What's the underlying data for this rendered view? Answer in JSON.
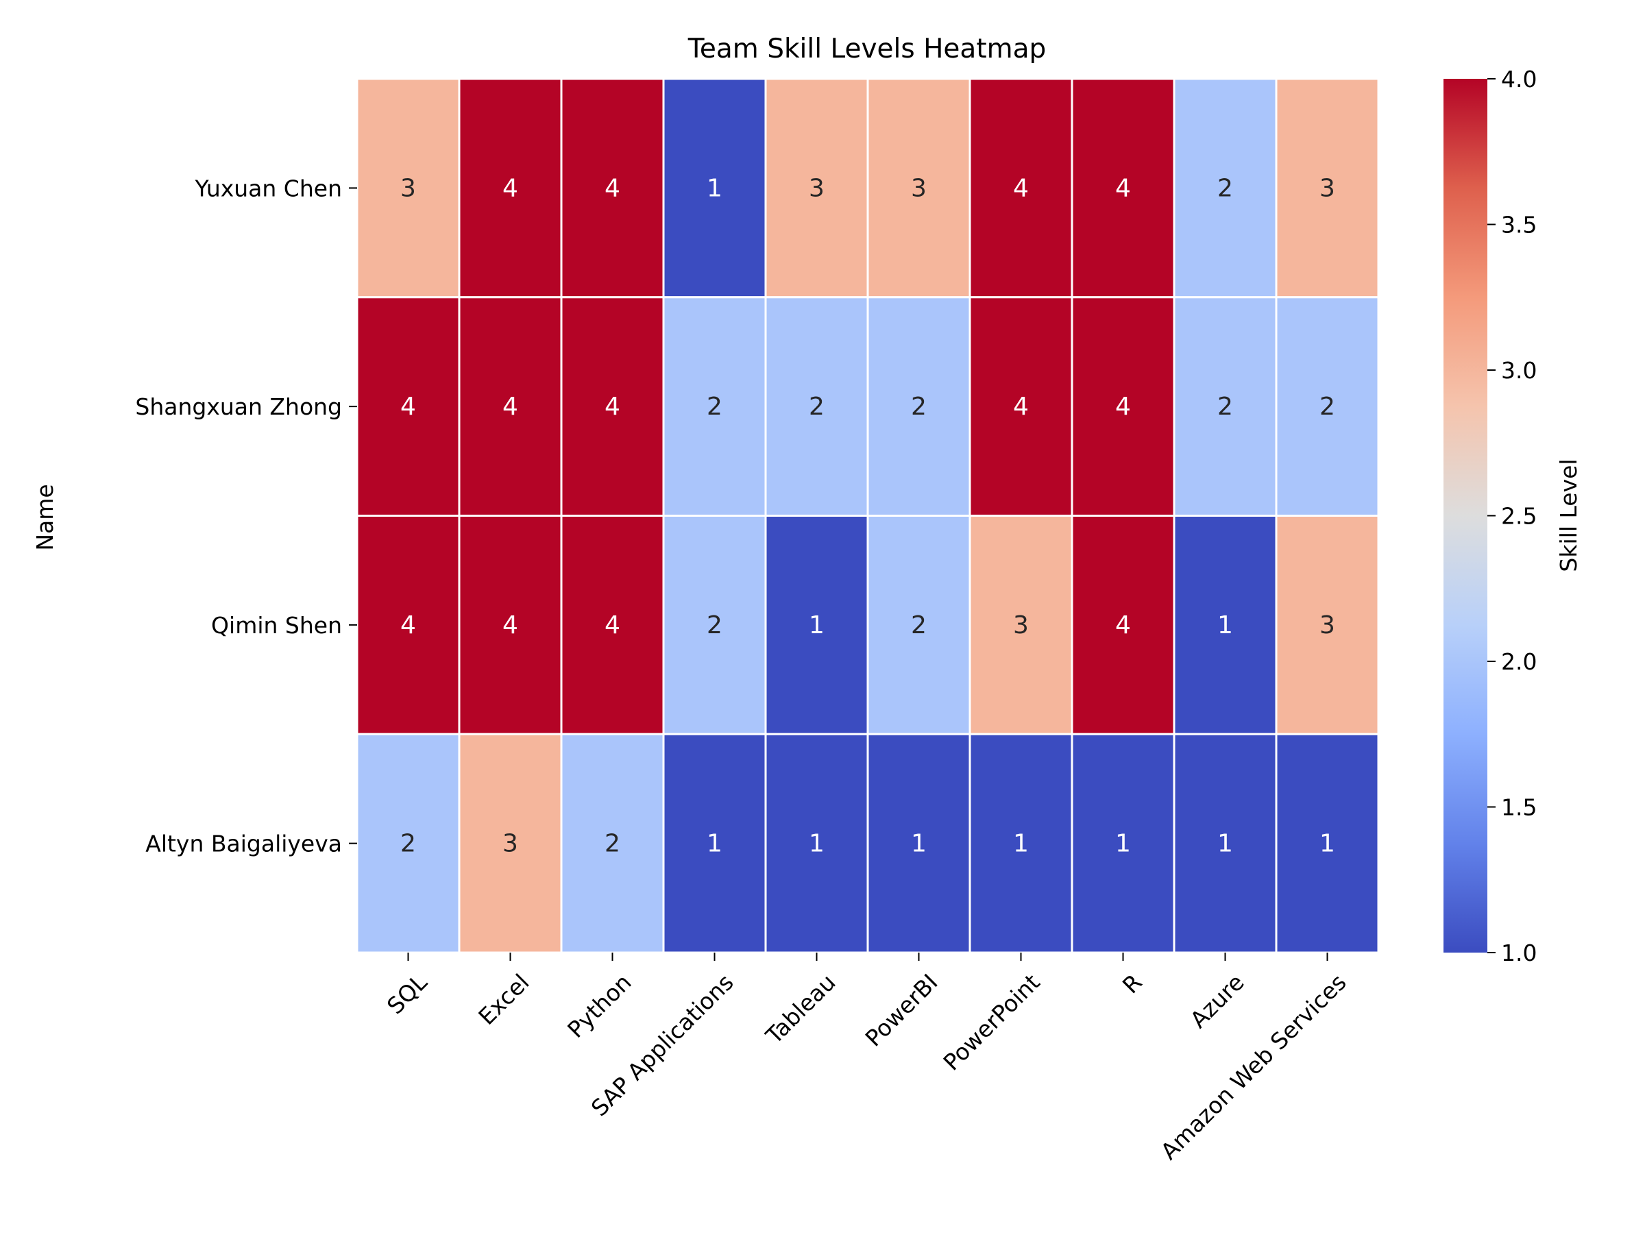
{
  "chart_data": {
    "type": "heatmap",
    "title": "Team Skill Levels Heatmap",
    "xlabel": "",
    "ylabel": "Name",
    "rows": [
      "Yuxuan Chen",
      "Shangxuan Zhong",
      "Qimin Shen",
      "Altyn Baigaliyeva"
    ],
    "columns": [
      "SQL",
      "Excel",
      "Python",
      "SAP Applications",
      "Tableau",
      "PowerBI",
      "PowerPoint",
      "R",
      "Azure",
      "Amazon Web Services"
    ],
    "values": [
      [
        3,
        4,
        4,
        1,
        3,
        3,
        4,
        4,
        2,
        3
      ],
      [
        4,
        4,
        4,
        2,
        2,
        2,
        4,
        4,
        2,
        2
      ],
      [
        4,
        4,
        4,
        2,
        1,
        2,
        3,
        4,
        1,
        3
      ],
      [
        2,
        3,
        2,
        1,
        1,
        1,
        1,
        1,
        1,
        1
      ]
    ],
    "colormap": "coolwarm",
    "vmin": 1,
    "vmax": 4,
    "colorbar": {
      "label": "Skill Level",
      "ticks": [
        "1.0",
        "1.5",
        "2.0",
        "2.5",
        "3.0",
        "3.5",
        "4.0"
      ]
    },
    "annotate_cells": true,
    "grid": false,
    "cell_separator_color": "#ffffff"
  }
}
